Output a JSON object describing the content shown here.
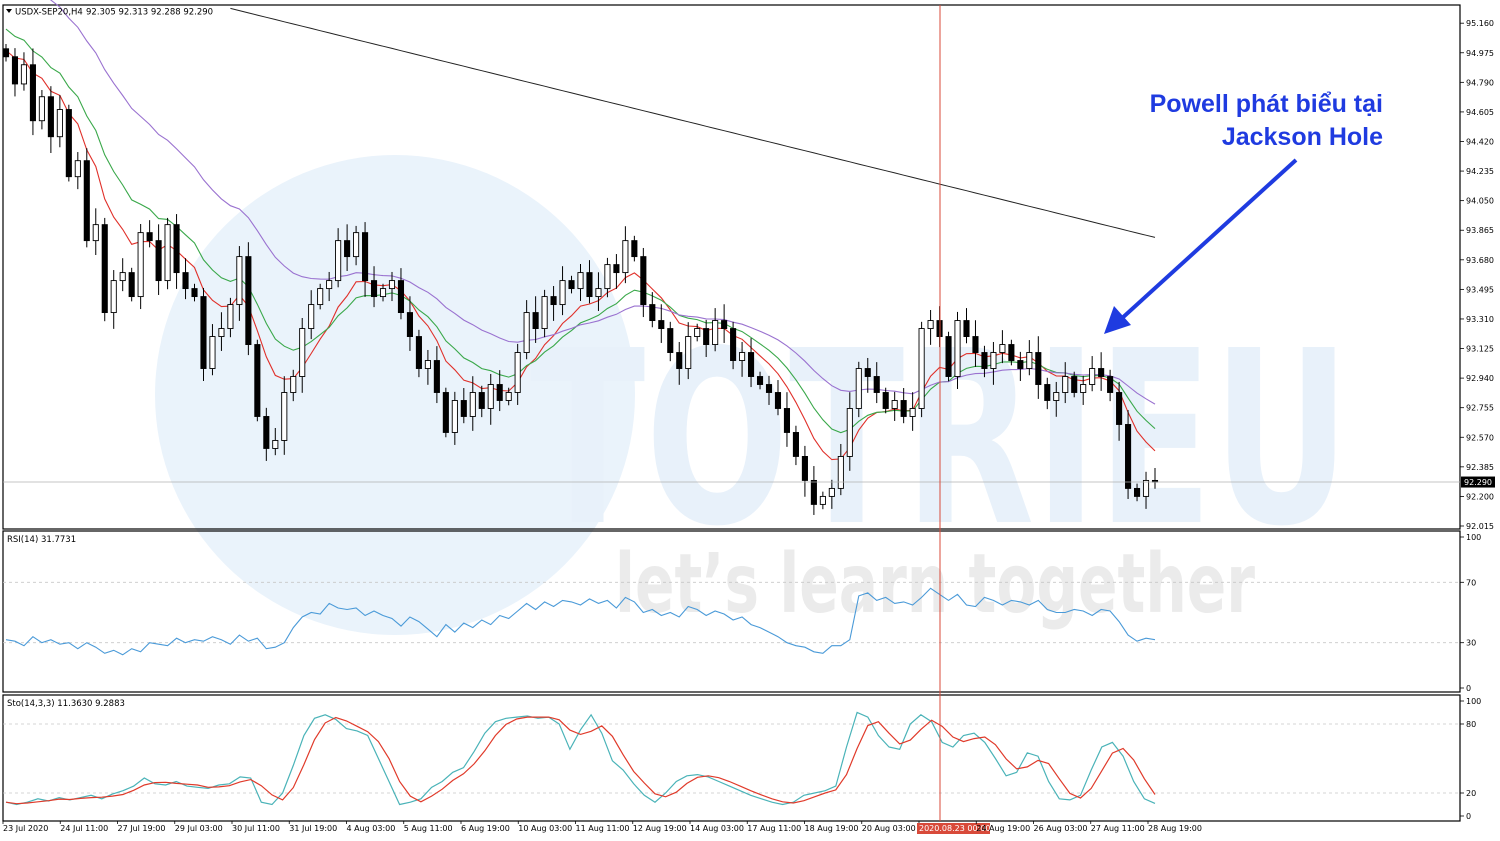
{
  "header": {
    "symbol": "USDX-SEP20,H4",
    "ohlc": "92.305 92.313 92.288 92.290"
  },
  "annotation": {
    "line1": "Powell phát biểu tại",
    "line2": "Jackson Hole",
    "color": "#1f3be0"
  },
  "watermark": {
    "brand": "TOTRIEU",
    "tagline": "let’s learn together"
  },
  "colors": {
    "candle": "#000000",
    "ma_fast": "#e0302a",
    "ma_mid": "#3aa84a",
    "ma_slow": "#9a72d0",
    "ma_long": "#222222",
    "rsi": "#4a9ad8",
    "sto_main": "#4ab3b8",
    "sto_signal": "#e03a2a",
    "vline": "#d84a3a",
    "grid": "#c8c8c8"
  },
  "chart_data": [
    {
      "type": "candlestick",
      "panel": "price",
      "yticks": [
        "95.160",
        "94.975",
        "94.790",
        "94.605",
        "94.420",
        "94.235",
        "94.050",
        "93.865",
        "93.680",
        "93.495",
        "93.310",
        "93.125",
        "92.940",
        "92.755",
        "92.570",
        "92.385",
        "92.200",
        "92.015"
      ],
      "ylim": [
        92.015,
        95.255
      ],
      "current_price": "92.290",
      "close": [
        94.95,
        94.78,
        94.9,
        94.55,
        94.7,
        94.45,
        94.62,
        94.2,
        94.3,
        93.8,
        93.9,
        93.35,
        93.55,
        93.6,
        93.45,
        93.85,
        93.8,
        93.55,
        93.9,
        93.6,
        93.5,
        93.45,
        93.0,
        93.2,
        93.25,
        93.4,
        93.7,
        93.15,
        92.7,
        92.5,
        92.55,
        92.85,
        92.95,
        93.25,
        93.4,
        93.5,
        93.55,
        93.8,
        93.7,
        93.85,
        93.55,
        93.45,
        93.5,
        93.55,
        93.35,
        93.2,
        93.0,
        93.05,
        92.85,
        92.6,
        92.8,
        92.7,
        92.85,
        92.75,
        92.9,
        92.8,
        92.85,
        93.1,
        93.35,
        93.25,
        93.45,
        93.4,
        93.55,
        93.5,
        93.6,
        93.45,
        93.5,
        93.65,
        93.6,
        93.8,
        93.7,
        93.4,
        93.3,
        93.25,
        93.1,
        93.0,
        93.2,
        93.25,
        93.15,
        93.3,
        93.25,
        93.05,
        93.1,
        92.95,
        92.9,
        92.85,
        92.75,
        92.6,
        92.45,
        92.3,
        92.15,
        92.2,
        92.25,
        92.45,
        92.75,
        93.0,
        92.95,
        92.85,
        92.75,
        92.8,
        92.7,
        92.75,
        93.25,
        93.3,
        93.2,
        92.95,
        93.3,
        93.2,
        93.1,
        93.0,
        93.1,
        93.15,
        93.05,
        93.0,
        93.1,
        92.9,
        92.8,
        92.85,
        92.95,
        92.85,
        92.9,
        93.0,
        92.95,
        92.85,
        92.65,
        92.25,
        92.2,
        92.3,
        92.29
      ]
    },
    {
      "type": "line",
      "panel": "indicator",
      "label": "RSI(14) 31.7731",
      "levels": [
        "100",
        "70",
        "30",
        "0"
      ],
      "ylim": [
        0,
        100
      ],
      "values": [
        32,
        31,
        28,
        34,
        30,
        32,
        29,
        30,
        26,
        30,
        27,
        23,
        25,
        22,
        26,
        24,
        30,
        29,
        28,
        33,
        30,
        32,
        31,
        34,
        32,
        29,
        35,
        31,
        33,
        26,
        27,
        30,
        40,
        47,
        50,
        49,
        56,
        53,
        52,
        53,
        48,
        51,
        48,
        46,
        41,
        47,
        44,
        39,
        34,
        42,
        37,
        43,
        40,
        45,
        42,
        48,
        46,
        51,
        56,
        52,
        57,
        54,
        58,
        57,
        55,
        59,
        56,
        58,
        53,
        60,
        57,
        50,
        52,
        48,
        50,
        47,
        54,
        52,
        48,
        51,
        49,
        45,
        47,
        42,
        40,
        37,
        34,
        30,
        28,
        27,
        24,
        23,
        28,
        28,
        32,
        61,
        63,
        58,
        60,
        56,
        57,
        55,
        60,
        66,
        62,
        58,
        62,
        55,
        54,
        60,
        58,
        55,
        58,
        57,
        55,
        58,
        52,
        50,
        50,
        52,
        51,
        48,
        52,
        51,
        44,
        35,
        31,
        33,
        32
      ]
    },
    {
      "type": "line",
      "panel": "indicator",
      "label": "Sto(14,3,3) 11.3630 9.2883",
      "levels": [
        "100",
        "80",
        "20",
        "0"
      ],
      "ylim": [
        0,
        100
      ],
      "series": [
        {
          "values": [
            12,
            10,
            12,
            15,
            13,
            16,
            14,
            16,
            18,
            15,
            19,
            22,
            26,
            33,
            28,
            27,
            30,
            26,
            25,
            24,
            27,
            28,
            34,
            33,
            12,
            10,
            20,
            44,
            70,
            85,
            88,
            84,
            76,
            74,
            70,
            50,
            30,
            10,
            12,
            15,
            25,
            30,
            38,
            42,
            56,
            72,
            82,
            85,
            86,
            87,
            85,
            86,
            80,
            58,
            75,
            88,
            72,
            48,
            40,
            28,
            18,
            12,
            20,
            30,
            35,
            36,
            34,
            30,
            26,
            22,
            18,
            15,
            12,
            10,
            12,
            18,
            20,
            22,
            26,
            60,
            90,
            86,
            70,
            60,
            58,
            80,
            88,
            82,
            64,
            60,
            70,
            72,
            64,
            50,
            35,
            38,
            55,
            52,
            30,
            15,
            14,
            18,
            40,
            60,
            64,
            52,
            30,
            15,
            11
          ]
        }
      ]
    }
  ],
  "xaxis": {
    "labels": [
      "23 Jul 2020",
      "24 Jul 11:00",
      "27 Jul 19:00",
      "29 Jul 03:00",
      "30 Jul 11:00",
      "31 Jul 19:00",
      "4 Aug 03:00",
      "5 Aug 11:00",
      "6 Aug 19:00",
      "10 Aug 03:00",
      "11 Aug 11:00",
      "12 Aug 19:00",
      "14 Aug 03:00",
      "17 Aug 11:00",
      "18 Aug 19:00",
      "20 Aug 03:00",
      "2020.08.23 00:00",
      "24 Aug 19:00",
      "26 Aug 03:00",
      "27 Aug 11:00",
      "28 Aug 19:00"
    ],
    "highlight_index": 16
  }
}
